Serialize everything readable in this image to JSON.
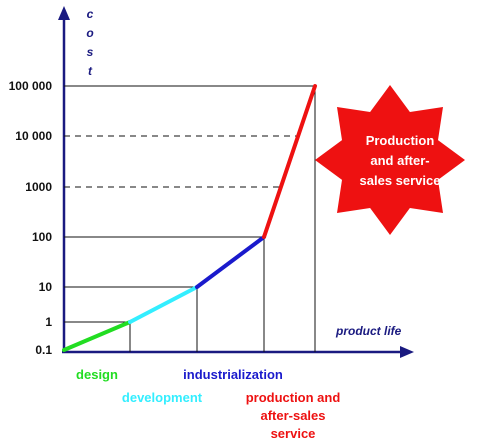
{
  "chart_data": {
    "type": "line",
    "ylabel": "cost",
    "xlabel": "product life",
    "y_scale": "log",
    "y_ticks": [
      "0.1",
      "1",
      "10",
      "100",
      "1000",
      "10 000",
      "100 000"
    ],
    "points": [
      {
        "y": 0.1
      },
      {
        "y": 1
      },
      {
        "y": 10
      },
      {
        "y": 100
      },
      {
        "y": 100000
      }
    ],
    "phases": [
      {
        "label": "design",
        "color": "#22dd22"
      },
      {
        "label": "development",
        "color": "#33eeff"
      },
      {
        "label": "industrialization",
        "color": "#1a1acc"
      },
      {
        "label": "production and after-sales service",
        "color": "#ee1111"
      }
    ],
    "phase_label_lines": {
      "production": [
        "production and",
        "after-sales",
        "service"
      ]
    },
    "callout": {
      "lines": [
        "Production",
        "and after-",
        "sales service"
      ],
      "fill": "#ee1111"
    },
    "axis_color": "#1a1a80"
  }
}
